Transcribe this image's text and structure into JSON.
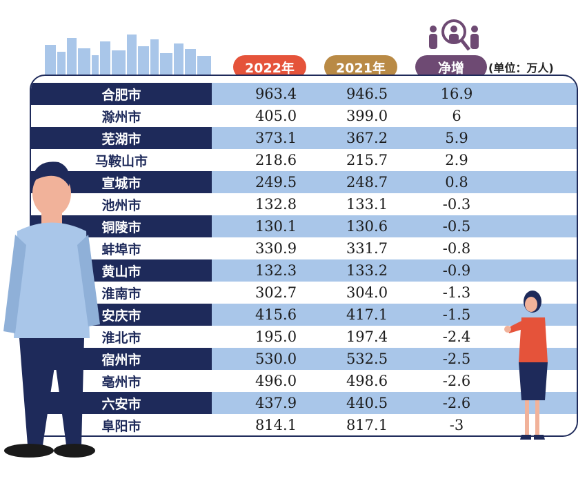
{
  "header": {
    "col_2022": "2022年",
    "col_2021": "2021年",
    "col_net": "净增",
    "unit": "(单位：万人)"
  },
  "colors": {
    "navy": "#1e2a5a",
    "light_blue": "#a9c6e9",
    "pill_2022": "#e5533a",
    "pill_2021": "#b98a45",
    "pill_net": "#6e4a73"
  },
  "chart_data": {
    "type": "table",
    "columns": [
      "2022年",
      "2021年",
      "净增"
    ],
    "rows": [
      {
        "city": "合肥市",
        "v2022": "963.4",
        "v2021": "946.5",
        "net": "16.9"
      },
      {
        "city": "滁州市",
        "v2022": "405.0",
        "v2021": "399.0",
        "net": "6"
      },
      {
        "city": "芜湖市",
        "v2022": "373.1",
        "v2021": "367.2",
        "net": "5.9"
      },
      {
        "city": "马鞍山市",
        "v2022": "218.6",
        "v2021": "215.7",
        "net": "2.9"
      },
      {
        "city": "宣城市",
        "v2022": "249.5",
        "v2021": "248.7",
        "net": "0.8"
      },
      {
        "city": "池州市",
        "v2022": "132.8",
        "v2021": "133.1",
        "net": "-0.3"
      },
      {
        "city": "铜陵市",
        "v2022": "130.1",
        "v2021": "130.6",
        "net": "-0.5"
      },
      {
        "city": "蚌埠市",
        "v2022": "330.9",
        "v2021": "331.7",
        "net": "-0.8"
      },
      {
        "city": "黄山市",
        "v2022": "132.3",
        "v2021": "133.2",
        "net": "-0.9"
      },
      {
        "city": "淮南市",
        "v2022": "302.7",
        "v2021": "304.0",
        "net": "-1.3"
      },
      {
        "city": "安庆市",
        "v2022": "415.6",
        "v2021": "417.1",
        "net": "-1.5"
      },
      {
        "city": "淮北市",
        "v2022": "195.0",
        "v2021": "197.4",
        "net": "-2.4"
      },
      {
        "city": "宿州市",
        "v2022": "530.0",
        "v2021": "532.5",
        "net": "-2.5"
      },
      {
        "city": "亳州市",
        "v2022": "496.0",
        "v2021": "498.6",
        "net": "-2.6"
      },
      {
        "city": "六安市",
        "v2022": "437.9",
        "v2021": "440.5",
        "net": "-2.6"
      },
      {
        "city": "阜阳市",
        "v2022": "814.1",
        "v2021": "817.1",
        "net": "-3"
      }
    ]
  }
}
